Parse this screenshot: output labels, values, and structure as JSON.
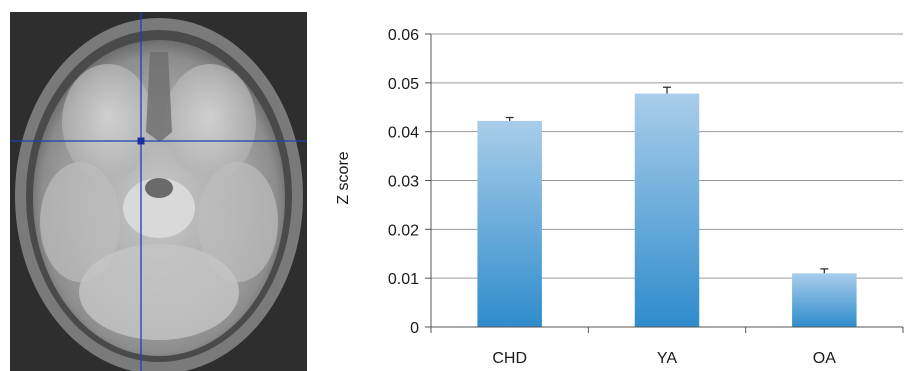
{
  "figure": {
    "brain_image": {
      "kind": "axial-mri-slice",
      "crosshair_color": "#1f3fb8",
      "marker_color": "#1a2f9a"
    }
  },
  "chart_data": {
    "type": "bar",
    "title": "",
    "xlabel": "",
    "ylabel": "Z score",
    "categories": [
      "CHD",
      "YA",
      "OA"
    ],
    "values": [
      0.0422,
      0.0478,
      0.011
    ],
    "error": [
      0.0007,
      0.0013,
      0.0009
    ],
    "ylim": [
      0,
      0.06
    ],
    "yticks": [
      0,
      0.01,
      0.02,
      0.03,
      0.04,
      0.05,
      0.06
    ],
    "ytick_labels": [
      "0",
      "0.01",
      "0.02",
      "0.03",
      "0.04",
      "0.05",
      "0.06"
    ],
    "grid": true,
    "legend": "none",
    "bar_color_top": "#a9cdea",
    "bar_color_bottom": "#2f8ccc"
  }
}
